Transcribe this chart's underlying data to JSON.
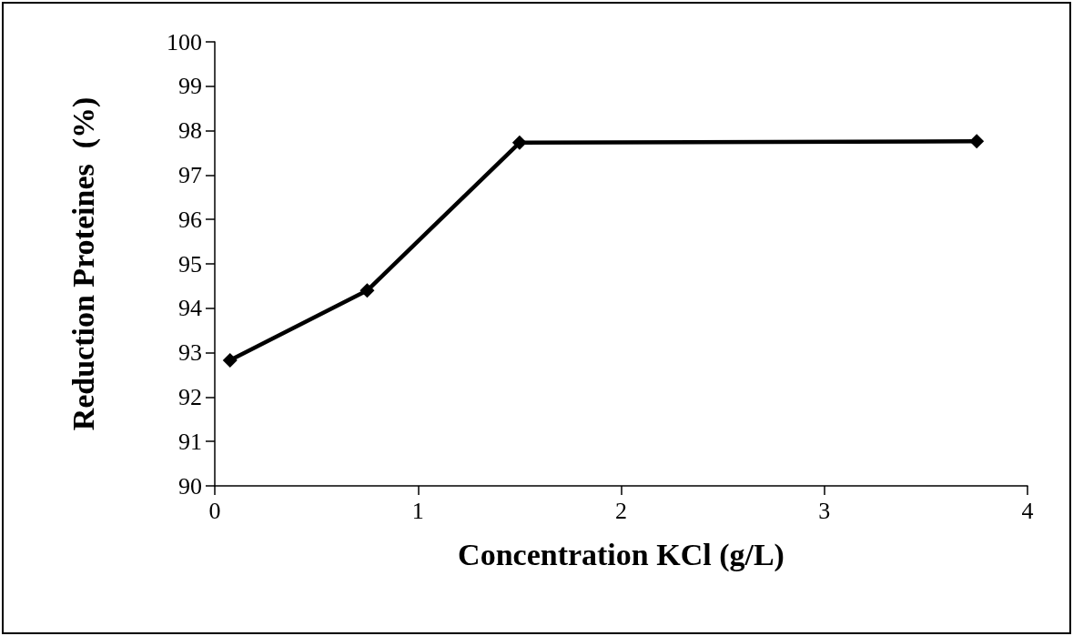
{
  "chart_data": {
    "type": "line",
    "xlabel": "Concentration KCl (g/L)",
    "ylabel": "Reduction Proteines  (%)",
    "x": [
      0.075,
      0.75,
      1.5,
      3.75
    ],
    "series": [
      {
        "color": "#000000",
        "values": [
          92.83,
          94.4,
          97.73,
          97.76
        ]
      }
    ],
    "xlim": [
      0,
      4
    ],
    "xticks": [
      0,
      1,
      2,
      3,
      4
    ],
    "ylim": [
      90,
      100
    ],
    "yticks": [
      90,
      91,
      92,
      93,
      94,
      95,
      96,
      97,
      98,
      99,
      100
    ],
    "grid": false,
    "marker": "diamond",
    "line_style": "solid"
  }
}
